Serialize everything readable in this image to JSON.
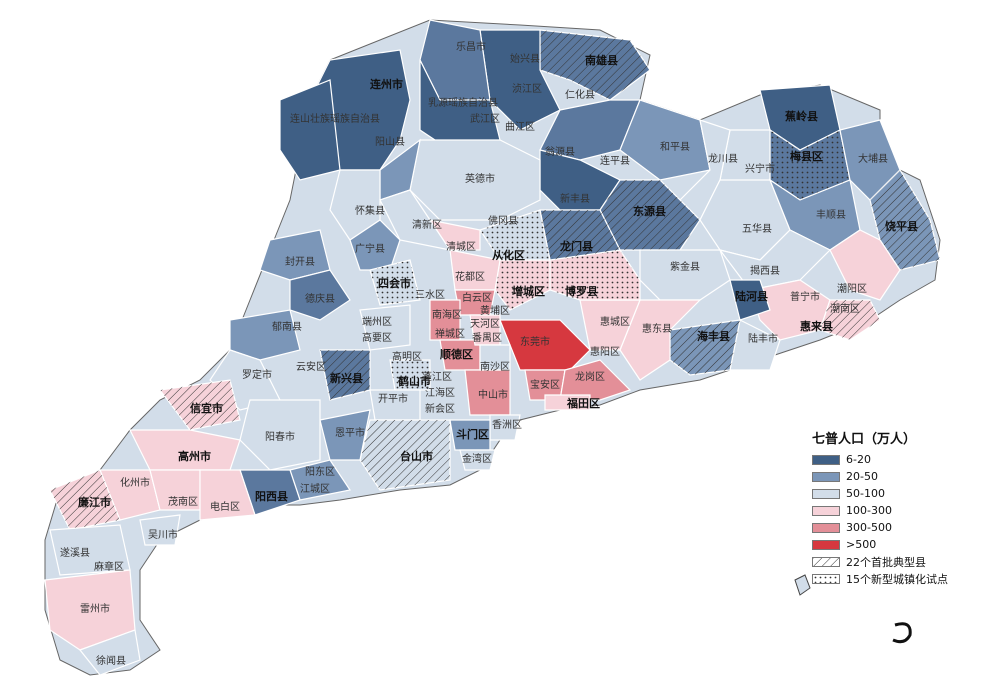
{
  "legend": {
    "title": "七普人口（万人）",
    "items": [
      {
        "label": "6-20",
        "color": "#3f5f85"
      },
      {
        "label": "20-50",
        "color": "#7b96b8"
      },
      {
        "label": "50-100",
        "color": "#d2dde9"
      },
      {
        "label": "100-300",
        "color": "#f6d2d9"
      },
      {
        "label": "300-500",
        "color": "#e38f98"
      },
      {
        "label": ">500",
        "color": "#d6383f"
      },
      {
        "label": "22个首批典型县",
        "pattern": "hatch"
      },
      {
        "label": "15个新型城镇化试点",
        "pattern": "dots"
      }
    ]
  },
  "labels": {
    "lianzhou": "连州市",
    "nanxiong": "南雄县",
    "jiaoling": "蕉岭县",
    "meixian": "梅县区",
    "raoping": "饶平县",
    "lianshan": "连山壮族瑶族自治县",
    "yingde": "英德市",
    "huaiji": "怀集县",
    "guangning": "广宁县",
    "fengkai": "封开县",
    "deqing": "德庆县",
    "qingxin": "清新区",
    "qingcheng": "清城区",
    "conghua": "从化区",
    "longmen": "龙门县",
    "dongyuan": "东源县",
    "heping": "和平县",
    "longchuan": "龙川县",
    "wuhua": "五华县",
    "xingning": "兴宁市",
    "dapu": "大埔县",
    "fengshun": "丰顺县",
    "zijin": "紫金县",
    "jiexi": "揭西县",
    "puning": "普宁市",
    "lufeng": "陆丰市",
    "luhe": "陆河县",
    "haifeng": "海丰县",
    "huilai": "惠来县",
    "chaoyang": "潮阳区",
    "chaonan": "潮南区",
    "zengcheng": "增城区",
    "boluo": "博罗县",
    "huicheng": "惠城区",
    "huiyang": "惠阳区",
    "huidong": "惠东县",
    "dongguan": "东莞市",
    "futian": "福田区",
    "baoan": "宝安区",
    "longgang": "龙岗区",
    "huadu": "花都区",
    "baiyun": "白云区",
    "huangpu": "黄埔区",
    "tianhe": "天河区",
    "panyu": "番禺区",
    "nanhai": "南海区",
    "chancheng": "禅城区",
    "shunde": "顺德区",
    "nansha": "南沙区",
    "zhongshan": "中山市",
    "doumen": "斗门区",
    "xiangzhou": "香洲区",
    "jinwan": "金湾区",
    "sanshui": "三水区",
    "sihui": "四会市",
    "duanzhou": "端州区",
    "gaoyao": "高要区",
    "gaoming": "高明区",
    "heshan": "鹤山市",
    "pengjiang": "蓬江区",
    "jianghai": "江海区",
    "xinhui": "新会区",
    "kaiping": "开平市",
    "taishan": "台山市",
    "enping": "恩平市",
    "xinxing": "新兴县",
    "yunan": "郁南县",
    "luoding": "罗定市",
    "yunan2": "云安区",
    "xinyi": "信宜市",
    "gaozhou": "高州市",
    "huazhou": "化州市",
    "maonan": "茂南区",
    "dianbai": "电白区",
    "lianjiang": "廉江市",
    "wuchuan": "吴川市",
    "suixi": "遂溪县",
    "mazhang": "麻章区",
    "leizhou": "雷州市",
    "xuwen": "徐闻县",
    "yangxi": "阳西县",
    "yangchun": "阳春市",
    "yangdong": "阳东区",
    "jiangcheng": "江城区",
    "shixing": "始兴县",
    "renhua": "仁化县",
    "ruyuan": "乳源瑶族自治县",
    "wujiang": "武江区",
    "qujiang": "曲江区",
    "wengyuan": "翁源县",
    "xinfeng": "新丰县",
    "lianping": "连平县",
    "fogang": "佛冈县",
    "yangshan": "阳山县",
    "lechang": "乐昌市",
    "jingxi": "浈江区"
  }
}
